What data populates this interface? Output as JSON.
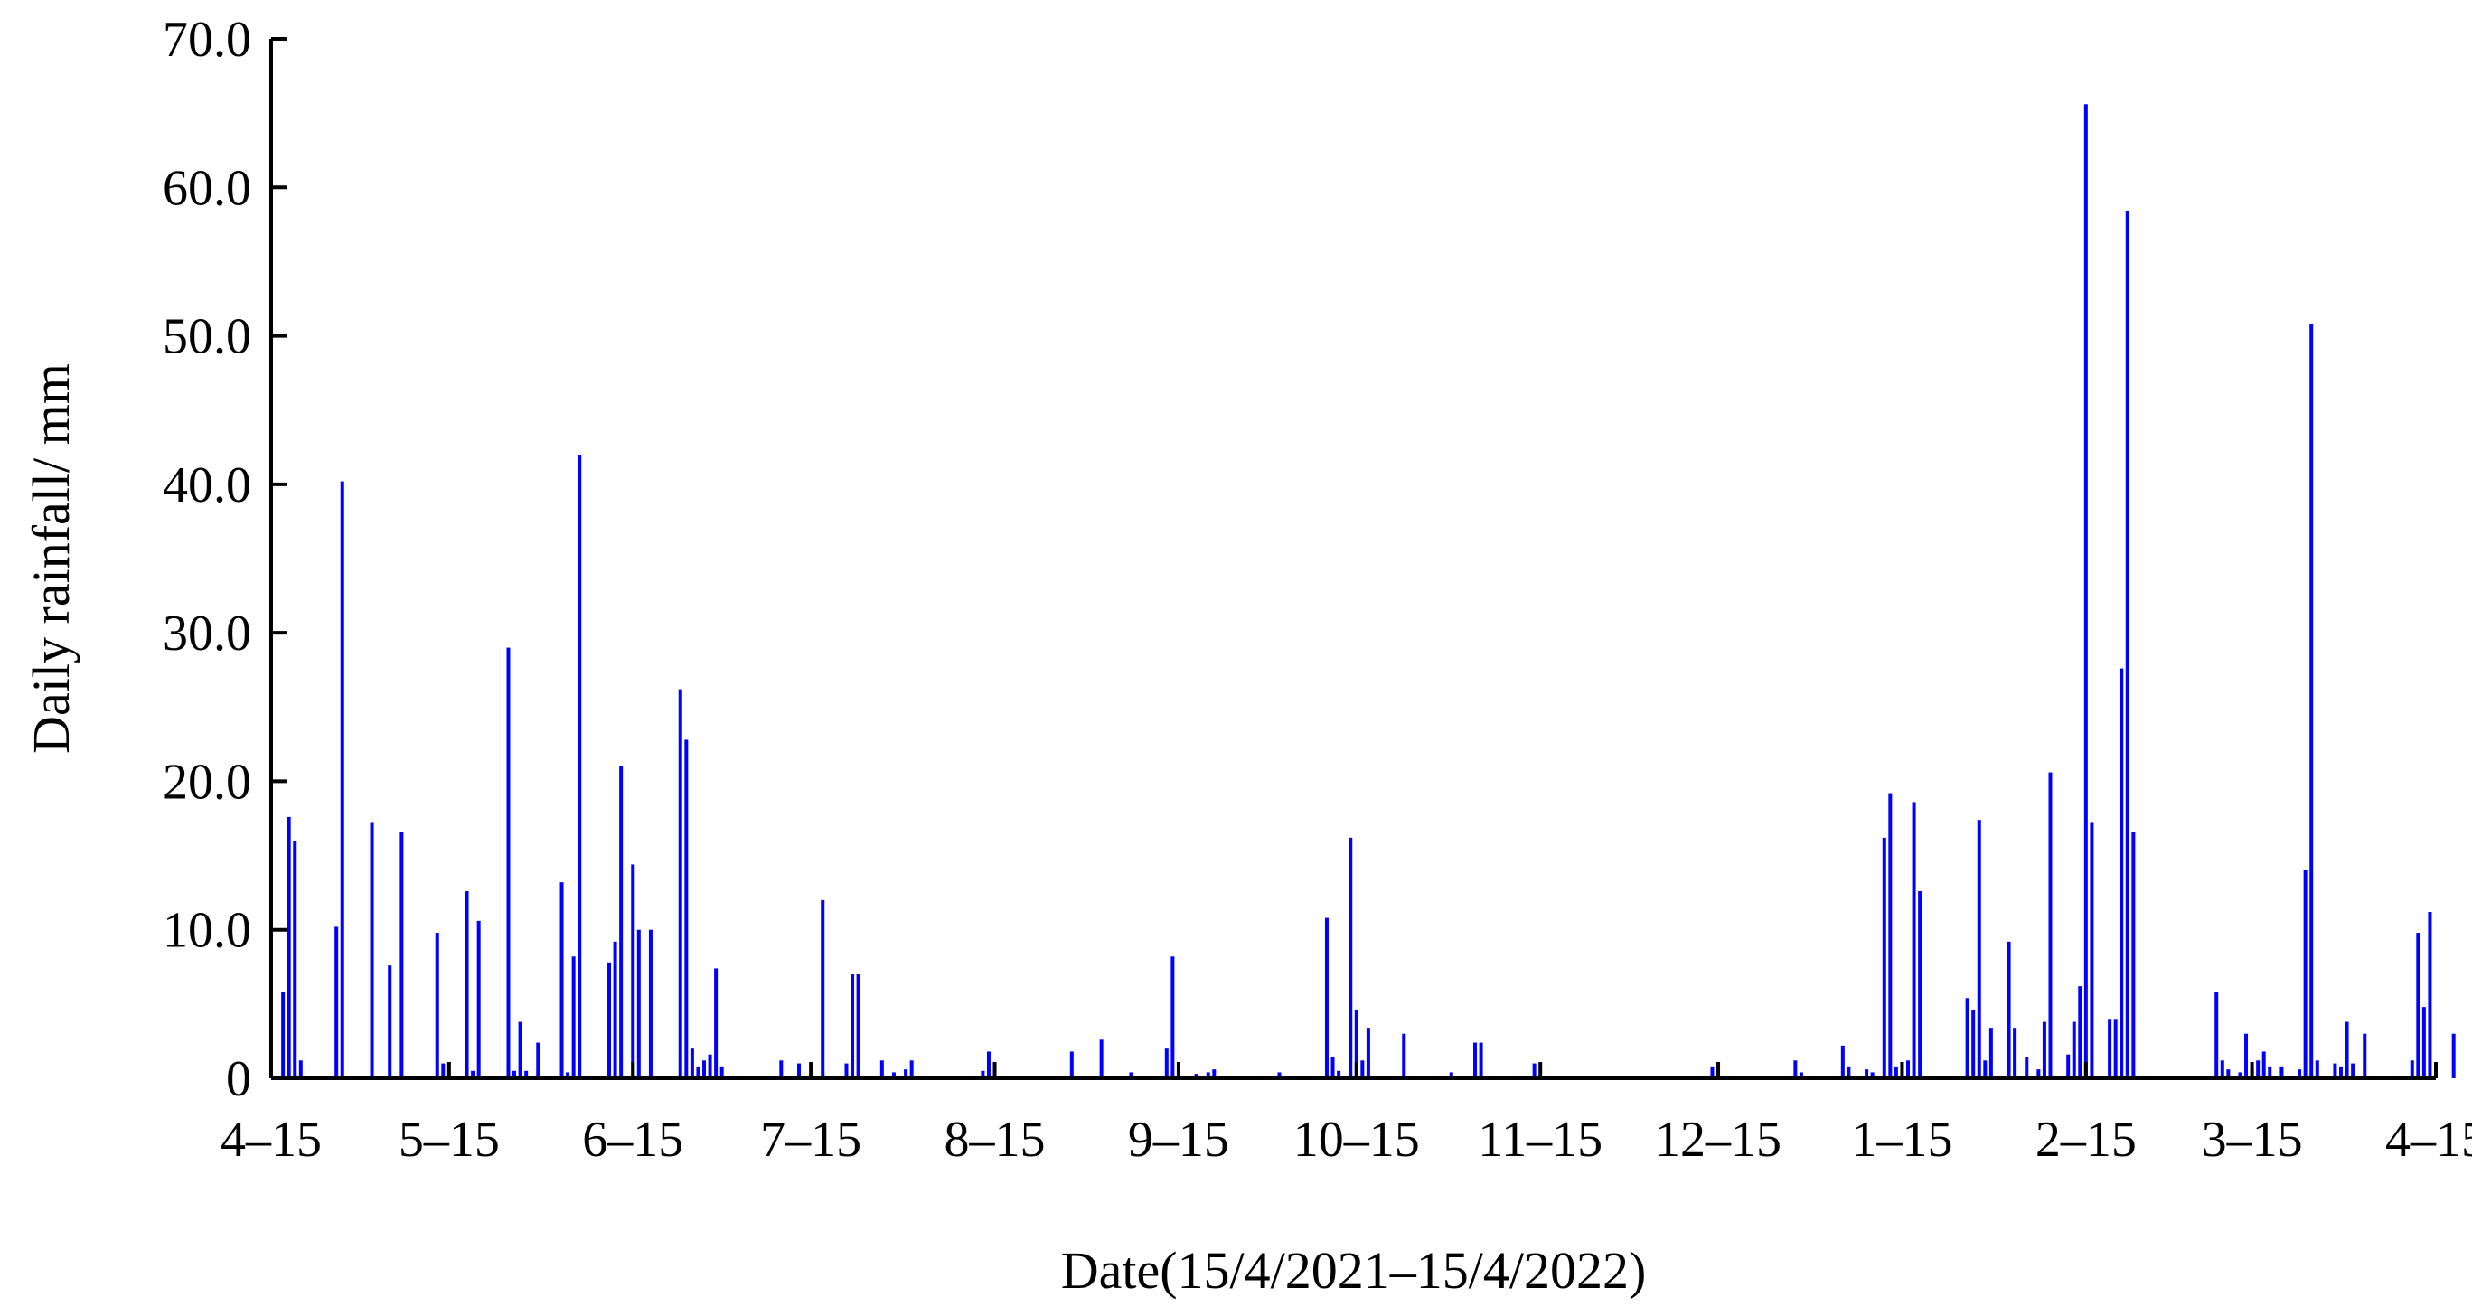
{
  "chart_data": {
    "type": "bar",
    "title": "",
    "xlabel": "Date(15/4/2021–15/4/2022)",
    "ylabel": "Daily rainfall/ mm",
    "ylim": [
      0,
      70
    ],
    "yticks": [
      "0",
      "10.0",
      "20.0",
      "30.0",
      "40.0",
      "50.0",
      "60.0",
      "70.0"
    ],
    "xlim": [
      "2021-04-15",
      "2022-04-15"
    ],
    "xticks": [
      {
        "date": "2021-04-15",
        "label": "4–15"
      },
      {
        "date": "2021-05-15",
        "label": "5–15"
      },
      {
        "date": "2021-06-15",
        "label": "6–15"
      },
      {
        "date": "2021-07-15",
        "label": "7–15"
      },
      {
        "date": "2021-08-15",
        "label": "8–15"
      },
      {
        "date": "2021-09-15",
        "label": "9–15"
      },
      {
        "date": "2021-10-15",
        "label": "10–15"
      },
      {
        "date": "2021-11-15",
        "label": "11–15"
      },
      {
        "date": "2021-12-15",
        "label": "12–15"
      },
      {
        "date": "2022-01-15",
        "label": "1–15"
      },
      {
        "date": "2022-02-15",
        "label": "2–15"
      },
      {
        "date": "2022-03-15",
        "label": "3–15"
      },
      {
        "date": "2022-04-15",
        "label": "4–15"
      }
    ],
    "grid": false,
    "bar_color": "#0000ff",
    "points": [
      {
        "date": "2021-04-17",
        "value": 5.8
      },
      {
        "date": "2021-04-18",
        "value": 17.6
      },
      {
        "date": "2021-04-19",
        "value": 16.0
      },
      {
        "date": "2021-04-20",
        "value": 1.2
      },
      {
        "date": "2021-04-26",
        "value": 10.2
      },
      {
        "date": "2021-04-27",
        "value": 40.2
      },
      {
        "date": "2021-05-02",
        "value": 17.2
      },
      {
        "date": "2021-05-05",
        "value": 7.6
      },
      {
        "date": "2021-05-07",
        "value": 16.6
      },
      {
        "date": "2021-05-13",
        "value": 9.8
      },
      {
        "date": "2021-05-14",
        "value": 1.0
      },
      {
        "date": "2021-05-18",
        "value": 12.6
      },
      {
        "date": "2021-05-19",
        "value": 0.5
      },
      {
        "date": "2021-05-20",
        "value": 10.6
      },
      {
        "date": "2021-05-25",
        "value": 29.0
      },
      {
        "date": "2021-05-26",
        "value": 0.5
      },
      {
        "date": "2021-05-27",
        "value": 3.8
      },
      {
        "date": "2021-05-28",
        "value": 0.5
      },
      {
        "date": "2021-05-30",
        "value": 2.4
      },
      {
        "date": "2021-06-03",
        "value": 13.2
      },
      {
        "date": "2021-06-04",
        "value": 0.4
      },
      {
        "date": "2021-06-05",
        "value": 8.2
      },
      {
        "date": "2021-06-06",
        "value": 42.0
      },
      {
        "date": "2021-06-11",
        "value": 7.8
      },
      {
        "date": "2021-06-12",
        "value": 9.2
      },
      {
        "date": "2021-06-13",
        "value": 21.0
      },
      {
        "date": "2021-06-15",
        "value": 14.4
      },
      {
        "date": "2021-06-16",
        "value": 10.0
      },
      {
        "date": "2021-06-18",
        "value": 10.0
      },
      {
        "date": "2021-06-23",
        "value": 26.2
      },
      {
        "date": "2021-06-24",
        "value": 22.8
      },
      {
        "date": "2021-06-25",
        "value": 2.0
      },
      {
        "date": "2021-06-26",
        "value": 0.8
      },
      {
        "date": "2021-06-27",
        "value": 1.2
      },
      {
        "date": "2021-06-28",
        "value": 1.6
      },
      {
        "date": "2021-06-29",
        "value": 7.4
      },
      {
        "date": "2021-06-30",
        "value": 0.8
      },
      {
        "date": "2021-07-10",
        "value": 1.2
      },
      {
        "date": "2021-07-13",
        "value": 1.0
      },
      {
        "date": "2021-07-17",
        "value": 12.0
      },
      {
        "date": "2021-07-21",
        "value": 1.0
      },
      {
        "date": "2021-07-22",
        "value": 7.0
      },
      {
        "date": "2021-07-23",
        "value": 7.0
      },
      {
        "date": "2021-07-27",
        "value": 1.2
      },
      {
        "date": "2021-07-29",
        "value": 0.4
      },
      {
        "date": "2021-07-31",
        "value": 0.6
      },
      {
        "date": "2021-08-01",
        "value": 1.2
      },
      {
        "date": "2021-08-13",
        "value": 0.5
      },
      {
        "date": "2021-08-14",
        "value": 1.8
      },
      {
        "date": "2021-08-15",
        "value": 1.0
      },
      {
        "date": "2021-08-28",
        "value": 1.8
      },
      {
        "date": "2021-09-02",
        "value": 2.6
      },
      {
        "date": "2021-09-07",
        "value": 0.4
      },
      {
        "date": "2021-09-13",
        "value": 2.0
      },
      {
        "date": "2021-09-14",
        "value": 8.2
      },
      {
        "date": "2021-09-18",
        "value": 0.3
      },
      {
        "date": "2021-09-20",
        "value": 0.4
      },
      {
        "date": "2021-09-21",
        "value": 0.6
      },
      {
        "date": "2021-10-02",
        "value": 0.4
      },
      {
        "date": "2021-10-10",
        "value": 10.8
      },
      {
        "date": "2021-10-11",
        "value": 1.4
      },
      {
        "date": "2021-10-12",
        "value": 0.5
      },
      {
        "date": "2021-10-14",
        "value": 16.2
      },
      {
        "date": "2021-10-15",
        "value": 4.6
      },
      {
        "date": "2021-10-16",
        "value": 1.2
      },
      {
        "date": "2021-10-17",
        "value": 3.4
      },
      {
        "date": "2021-10-23",
        "value": 3.0
      },
      {
        "date": "2021-10-31",
        "value": 0.4
      },
      {
        "date": "2021-11-04",
        "value": 2.4
      },
      {
        "date": "2021-11-05",
        "value": 2.4
      },
      {
        "date": "2021-11-14",
        "value": 1.0
      },
      {
        "date": "2021-12-14",
        "value": 0.8
      },
      {
        "date": "2021-12-28",
        "value": 1.2
      },
      {
        "date": "2021-12-29",
        "value": 0.4
      },
      {
        "date": "2022-01-05",
        "value": 2.2
      },
      {
        "date": "2022-01-06",
        "value": 0.8
      },
      {
        "date": "2022-01-09",
        "value": 0.6
      },
      {
        "date": "2022-01-10",
        "value": 0.4
      },
      {
        "date": "2022-01-12",
        "value": 16.2
      },
      {
        "date": "2022-01-13",
        "value": 19.2
      },
      {
        "date": "2022-01-14",
        "value": 0.8
      },
      {
        "date": "2022-01-16",
        "value": 1.2
      },
      {
        "date": "2022-01-17",
        "value": 18.6
      },
      {
        "date": "2022-01-18",
        "value": 12.6
      },
      {
        "date": "2022-01-26",
        "value": 5.4
      },
      {
        "date": "2022-01-27",
        "value": 4.6
      },
      {
        "date": "2022-01-28",
        "value": 17.4
      },
      {
        "date": "2022-01-29",
        "value": 1.2
      },
      {
        "date": "2022-01-30",
        "value": 3.4
      },
      {
        "date": "2022-02-02",
        "value": 9.2
      },
      {
        "date": "2022-02-03",
        "value": 3.4
      },
      {
        "date": "2022-02-05",
        "value": 1.4
      },
      {
        "date": "2022-02-07",
        "value": 0.6
      },
      {
        "date": "2022-02-08",
        "value": 3.8
      },
      {
        "date": "2022-02-09",
        "value": 20.6
      },
      {
        "date": "2022-02-12",
        "value": 1.6
      },
      {
        "date": "2022-02-13",
        "value": 3.8
      },
      {
        "date": "2022-02-14",
        "value": 6.2
      },
      {
        "date": "2022-02-15",
        "value": 65.6
      },
      {
        "date": "2022-02-16",
        "value": 17.2
      },
      {
        "date": "2022-02-19",
        "value": 4.0
      },
      {
        "date": "2022-02-20",
        "value": 4.0
      },
      {
        "date": "2022-02-21",
        "value": 27.6
      },
      {
        "date": "2022-02-22",
        "value": 58.4
      },
      {
        "date": "2022-02-23",
        "value": 16.6
      },
      {
        "date": "2022-03-09",
        "value": 5.8
      },
      {
        "date": "2022-03-10",
        "value": 1.2
      },
      {
        "date": "2022-03-11",
        "value": 0.6
      },
      {
        "date": "2022-03-13",
        "value": 0.4
      },
      {
        "date": "2022-03-14",
        "value": 3.0
      },
      {
        "date": "2022-03-15",
        "value": 0.6
      },
      {
        "date": "2022-03-16",
        "value": 1.2
      },
      {
        "date": "2022-03-17",
        "value": 1.8
      },
      {
        "date": "2022-03-18",
        "value": 0.8
      },
      {
        "date": "2022-03-20",
        "value": 0.8
      },
      {
        "date": "2022-03-23",
        "value": 0.6
      },
      {
        "date": "2022-03-24",
        "value": 14.0
      },
      {
        "date": "2022-03-25",
        "value": 50.8
      },
      {
        "date": "2022-03-26",
        "value": 1.2
      },
      {
        "date": "2022-03-29",
        "value": 1.0
      },
      {
        "date": "2022-03-30",
        "value": 0.8
      },
      {
        "date": "2022-03-31",
        "value": 3.8
      },
      {
        "date": "2022-04-01",
        "value": 1.0
      },
      {
        "date": "2022-04-03",
        "value": 3.0
      },
      {
        "date": "2022-04-11",
        "value": 1.2
      },
      {
        "date": "2022-04-12",
        "value": 9.8
      },
      {
        "date": "2022-04-13",
        "value": 4.8
      },
      {
        "date": "2022-04-14",
        "value": 11.2
      },
      {
        "date": "2022-04-18",
        "value": 3.0
      }
    ]
  }
}
